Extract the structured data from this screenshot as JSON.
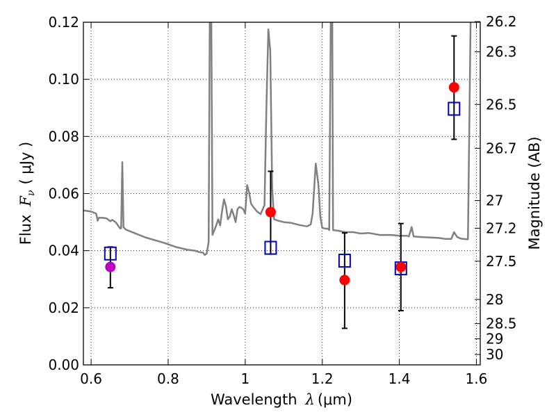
{
  "chart_data": {
    "type": "scatter",
    "xlabel": "Wavelength",
    "xlabel_math": "λ",
    "xlabel_unit": "(μm)",
    "ylabel": "Flux",
    "ylabel_math": "F",
    "ylabel_math_sub": "ν",
    "ylabel_unit": "( μJy )",
    "y2label": "Magnitude (AB)",
    "xlim": [
      0.58,
      1.61
    ],
    "ylim": [
      0.0,
      0.12
    ],
    "grid": true,
    "x_ticks": [
      {
        "value": 0.6,
        "label": "0.6"
      },
      {
        "value": 0.8,
        "label": "0.8"
      },
      {
        "value": 1.0,
        "label": "1"
      },
      {
        "value": 1.2,
        "label": "1.2"
      },
      {
        "value": 1.4,
        "label": "1.4"
      },
      {
        "value": 1.6,
        "label": "1.6"
      }
    ],
    "y_ticks": [
      {
        "value": 0.0,
        "label": "0.00"
      },
      {
        "value": 0.02,
        "label": "0.02"
      },
      {
        "value": 0.04,
        "label": "0.04"
      },
      {
        "value": 0.06,
        "label": "0.06"
      },
      {
        "value": 0.08,
        "label": "0.08"
      },
      {
        "value": 0.1,
        "label": "0.10"
      },
      {
        "value": 0.12,
        "label": "0.12"
      }
    ],
    "y2_ticks": [
      {
        "mag": 26.2,
        "label": "26.2"
      },
      {
        "mag": 26.3,
        "label": "26.3"
      },
      {
        "mag": 26.5,
        "label": "26.5"
      },
      {
        "mag": 26.7,
        "label": "26.7"
      },
      {
        "mag": 27.0,
        "label": "27"
      },
      {
        "mag": 27.2,
        "label": "27.2"
      },
      {
        "mag": 27.5,
        "label": "27.5"
      },
      {
        "mag": 28.0,
        "label": "28"
      },
      {
        "mag": 28.5,
        "label": "28.5"
      },
      {
        "mag": 29.0,
        "label": "29"
      },
      {
        "mag": 30.0,
        "label": "30"
      }
    ],
    "spectrum": {
      "color": "#808080",
      "points": [
        [
          0.58,
          0.0541
        ],
        [
          0.6,
          0.0537
        ],
        [
          0.613,
          0.053
        ],
        [
          0.617,
          0.0505
        ],
        [
          0.62,
          0.0515
        ],
        [
          0.63,
          0.0515
        ],
        [
          0.64,
          0.0513
        ],
        [
          0.65,
          0.0503
        ],
        [
          0.655,
          0.0508
        ],
        [
          0.665,
          0.0498
        ],
        [
          0.675,
          0.0478
        ],
        [
          0.678,
          0.0478
        ],
        [
          0.681,
          0.071
        ],
        [
          0.684,
          0.0482
        ],
        [
          0.69,
          0.0474
        ],
        [
          0.71,
          0.0463
        ],
        [
          0.74,
          0.0447
        ],
        [
          0.77,
          0.0435
        ],
        [
          0.79,
          0.0427
        ],
        [
          0.82,
          0.0413
        ],
        [
          0.85,
          0.0403
        ],
        [
          0.87,
          0.04
        ],
        [
          0.88,
          0.0395
        ],
        [
          0.89,
          0.0393
        ],
        [
          0.895,
          0.0385
        ],
        [
          0.9,
          0.039
        ],
        [
          0.905,
          0.043
        ],
        [
          0.908,
          0.12
        ],
        [
          0.912,
          0.12
        ],
        [
          0.915,
          0.0455
        ],
        [
          0.925,
          0.049
        ],
        [
          0.93,
          0.051
        ],
        [
          0.935,
          0.0488
        ],
        [
          0.94,
          0.054
        ],
        [
          0.945,
          0.058
        ],
        [
          0.95,
          0.0555
        ],
        [
          0.955,
          0.051
        ],
        [
          0.96,
          0.052
        ],
        [
          0.965,
          0.0545
        ],
        [
          0.97,
          0.0525
        ],
        [
          0.975,
          0.05
        ],
        [
          0.98,
          0.0545
        ],
        [
          0.985,
          0.0553
        ],
        [
          0.99,
          0.055
        ],
        [
          0.995,
          0.0545
        ],
        [
          1.0,
          0.053
        ],
        [
          1.005,
          0.063
        ],
        [
          1.01,
          0.0605
        ],
        [
          1.015,
          0.0565
        ],
        [
          1.02,
          0.0555
        ],
        [
          1.03,
          0.0538
        ],
        [
          1.04,
          0.0528
        ],
        [
          1.05,
          0.056
        ],
        [
          1.055,
          0.09
        ],
        [
          1.06,
          0.1175
        ],
        [
          1.065,
          0.11
        ],
        [
          1.07,
          0.062
        ],
        [
          1.075,
          0.051
        ],
        [
          1.085,
          0.0505
        ],
        [
          1.1,
          0.05
        ],
        [
          1.12,
          0.0497
        ],
        [
          1.14,
          0.049
        ],
        [
          1.16,
          0.0485
        ],
        [
          1.17,
          0.0492
        ],
        [
          1.175,
          0.053
        ],
        [
          1.183,
          0.0705
        ],
        [
          1.19,
          0.063
        ],
        [
          1.195,
          0.052
        ],
        [
          1.2,
          0.048
        ],
        [
          1.208,
          0.0477
        ],
        [
          1.215,
          0.0477
        ],
        [
          1.218,
          0.0472
        ],
        [
          1.222,
          0.12
        ],
        [
          1.226,
          0.12
        ],
        [
          1.228,
          0.0472
        ],
        [
          1.24,
          0.047
        ],
        [
          1.26,
          0.0465
        ],
        [
          1.28,
          0.0465
        ],
        [
          1.3,
          0.046
        ],
        [
          1.32,
          0.0462
        ],
        [
          1.35,
          0.0455
        ],
        [
          1.38,
          0.0455
        ],
        [
          1.4,
          0.0452
        ],
        [
          1.42,
          0.0452
        ],
        [
          1.425,
          0.045
        ],
        [
          1.432,
          0.0483
        ],
        [
          1.437,
          0.045
        ],
        [
          1.45,
          0.0448
        ],
        [
          1.48,
          0.0446
        ],
        [
          1.5,
          0.0445
        ],
        [
          1.52,
          0.0441
        ],
        [
          1.535,
          0.0441
        ],
        [
          1.542,
          0.0465
        ],
        [
          1.55,
          0.0448
        ],
        [
          1.56,
          0.0442
        ],
        [
          1.575,
          0.044
        ],
        [
          1.578,
          0.044
        ],
        [
          1.585,
          0.12
        ]
      ]
    },
    "observed": {
      "color": "#ff0000",
      "points": [
        {
          "x": 1.066,
          "y": 0.0535,
          "yerr_low": 0.0388,
          "yerr_high": 0.0678
        },
        {
          "x": 1.258,
          "y": 0.0297,
          "yerr_low": 0.0128,
          "yerr_high": 0.0462
        },
        {
          "x": 1.404,
          "y": 0.0343,
          "yerr_low": 0.019,
          "yerr_high": 0.0495
        },
        {
          "x": 1.542,
          "y": 0.0972,
          "yerr_low": 0.079,
          "yerr_high": 0.1152
        }
      ]
    },
    "observed_other": {
      "color": "#bf00bf",
      "points": [
        {
          "x": 0.65,
          "y": 0.0343,
          "yerr_low": 0.027,
          "yerr_high": 0.0413
        }
      ]
    },
    "model": {
      "color": "#0000bf",
      "points": [
        {
          "x": 0.65,
          "y": 0.039
        },
        {
          "x": 1.066,
          "y": 0.041
        },
        {
          "x": 1.258,
          "y": 0.0365
        },
        {
          "x": 1.404,
          "y": 0.0338
        },
        {
          "x": 1.542,
          "y": 0.0897
        }
      ]
    }
  }
}
